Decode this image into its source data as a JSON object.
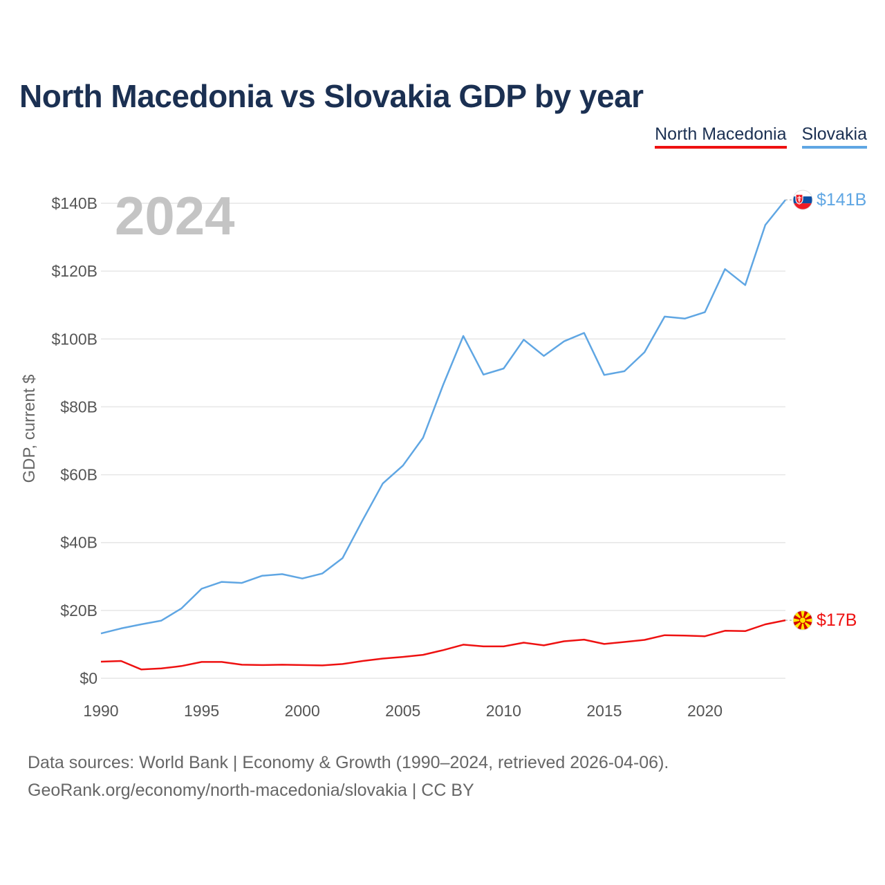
{
  "header": {
    "title": "North Macedonia vs Slovakia GDP by year"
  },
  "legend": [
    {
      "label": "North Macedonia",
      "color": "#ee1111"
    },
    {
      "label": "Slovakia",
      "color": "#5fa6e3"
    }
  ],
  "chart_data": {
    "type": "line",
    "title": "North Macedonia vs Slovakia GDP by year",
    "ylabel": "GDP, current $",
    "xlabel": "",
    "year_label": "2024",
    "xlim": [
      1990,
      2024
    ],
    "ylim": [
      0,
      150
    ],
    "x_ticks": [
      1990,
      1995,
      2000,
      2005,
      2010,
      2015,
      2020
    ],
    "x_tick_labels": [
      "1990",
      "1995",
      "2000",
      "2005",
      "2010",
      "2015",
      "2020"
    ],
    "y_ticks": [
      0,
      20,
      40,
      60,
      80,
      100,
      120,
      140
    ],
    "y_tick_labels": [
      "$0",
      "$20B",
      "$40B",
      "$60B",
      "$80B",
      "$100B",
      "$120B",
      "$140B"
    ],
    "x": [
      1990,
      1991,
      1992,
      1993,
      1994,
      1995,
      1996,
      1997,
      1998,
      1999,
      2000,
      2001,
      2002,
      2003,
      2004,
      2005,
      2006,
      2007,
      2008,
      2009,
      2010,
      2011,
      2012,
      2013,
      2014,
      2015,
      2016,
      2017,
      2018,
      2019,
      2020,
      2021,
      2022,
      2023,
      2024
    ],
    "series": [
      {
        "name": "Slovakia",
        "color": "#5fa6e3",
        "end_label": "$141B",
        "icon": "slovakia-flag-icon",
        "values": [
          13.2,
          14.7,
          15.9,
          17.0,
          20.6,
          26.4,
          28.4,
          28.1,
          30.2,
          30.7,
          29.4,
          30.9,
          35.4,
          46.6,
          57.4,
          62.7,
          70.9,
          86.5,
          100.9,
          89.5,
          91.3,
          99.8,
          95.0,
          99.3,
          101.8,
          89.4,
          90.5,
          96.1,
          106.6,
          106.0,
          107.9,
          120.6,
          115.9,
          133.6,
          141.0
        ]
      },
      {
        "name": "North Macedonia",
        "color": "#ee1111",
        "end_label": "$17B",
        "icon": "north-macedonia-flag-icon",
        "values": [
          4.9,
          5.1,
          2.6,
          2.9,
          3.6,
          4.8,
          4.8,
          4.0,
          3.9,
          4.0,
          3.9,
          3.8,
          4.2,
          5.1,
          5.8,
          6.3,
          6.9,
          8.3,
          9.9,
          9.4,
          9.4,
          10.5,
          9.7,
          10.9,
          11.4,
          10.1,
          10.7,
          11.3,
          12.7,
          12.6,
          12.4,
          14.0,
          13.9,
          15.9,
          17.1
        ]
      }
    ]
  },
  "footer": {
    "line1": "Data sources: World Bank | Economy & Growth (1990–2024, retrieved 2026-04-06).",
    "line2": "GeoRank.org/economy/north-macedonia/slovakia | CC BY"
  }
}
